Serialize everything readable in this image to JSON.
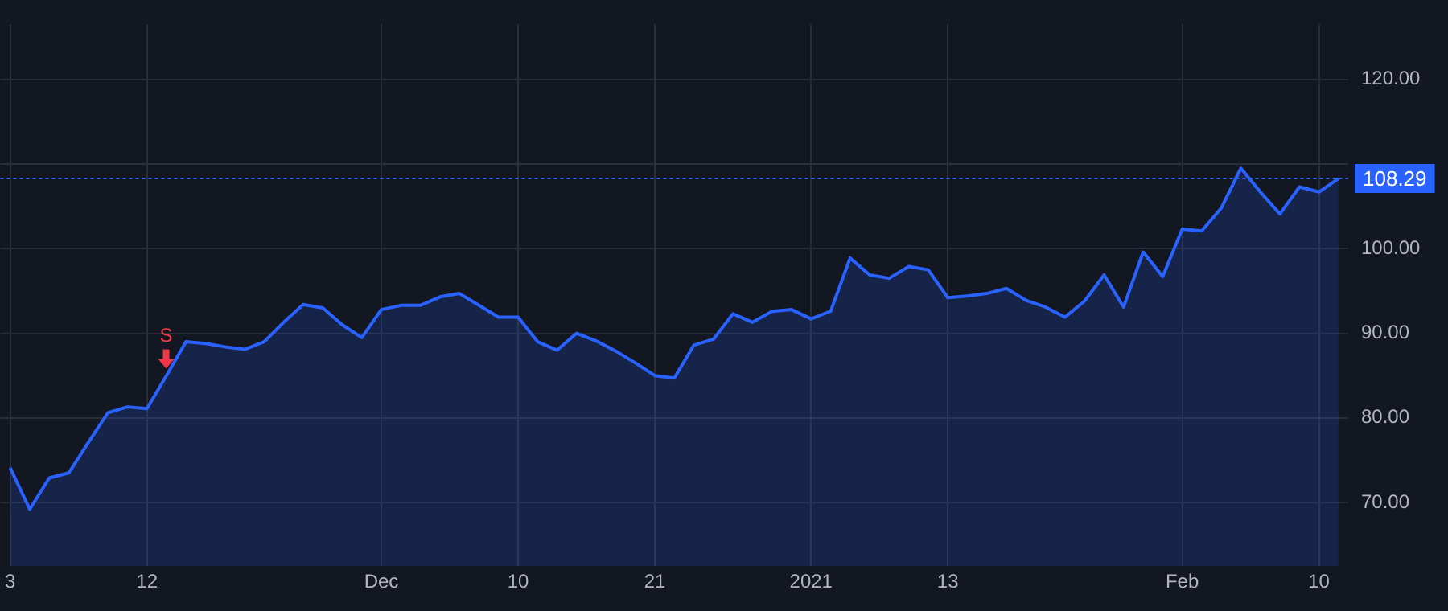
{
  "chart_data": {
    "type": "area",
    "categories": [
      "3",
      null,
      null,
      null,
      null,
      null,
      null,
      "12",
      null,
      null,
      null,
      null,
      null,
      null,
      null,
      null,
      null,
      null,
      null,
      "Dec",
      null,
      null,
      null,
      null,
      null,
      null,
      "10",
      null,
      null,
      null,
      null,
      null,
      null,
      "21",
      null,
      null,
      null,
      null,
      null,
      null,
      null,
      "2021",
      null,
      null,
      null,
      null,
      null,
      null,
      "13",
      null,
      null,
      null,
      null,
      null,
      null,
      null,
      null,
      null,
      null,
      null,
      "Feb",
      null,
      null,
      null,
      null,
      null,
      null,
      "10",
      null
    ],
    "series": [
      {
        "color": "#2962ff",
        "values": [
          74.1,
          69.2,
          72.9,
          73.5,
          77.1,
          80.6,
          81.3,
          81.1,
          85.0,
          89.0,
          88.8,
          88.4,
          88.1,
          89.0,
          91.3,
          93.4,
          93.0,
          91.0,
          89.5,
          92.8,
          93.3,
          93.3,
          94.3,
          94.7,
          93.3,
          91.9,
          91.9,
          89.0,
          88.0,
          90.0,
          89.1,
          87.9,
          86.5,
          85.0,
          84.7,
          88.6,
          89.3,
          92.3,
          91.3,
          92.6,
          92.8,
          91.7,
          92.6,
          98.9,
          96.9,
          96.5,
          97.9,
          97.5,
          94.2,
          94.4,
          94.7,
          95.3,
          93.9,
          93.1,
          91.9,
          93.8,
          96.9,
          93.1,
          99.6,
          96.7,
          102.3,
          102.1,
          104.8,
          109.5,
          106.7,
          104.1,
          107.3,
          106.7,
          108.29
        ]
      }
    ],
    "ylim": [
      62.5,
      126.5
    ],
    "yticks": [
      {
        "value": 70,
        "label": "70.00"
      },
      {
        "value": 80,
        "label": "80.00"
      },
      {
        "value": 90,
        "label": "90.00"
      },
      {
        "value": 100,
        "label": "100.00"
      },
      {
        "value": 110,
        "label": null
      },
      {
        "value": 120,
        "label": "120.00"
      }
    ],
    "ref_lines": [
      {
        "axis": "y",
        "value": 108.29,
        "label": "108.29",
        "color": "#2962ff",
        "line_style": "dotted"
      }
    ],
    "annotations": [
      "S"
    ],
    "grid": true,
    "legend": false,
    "marker": "none",
    "line_style": "solid"
  }
}
